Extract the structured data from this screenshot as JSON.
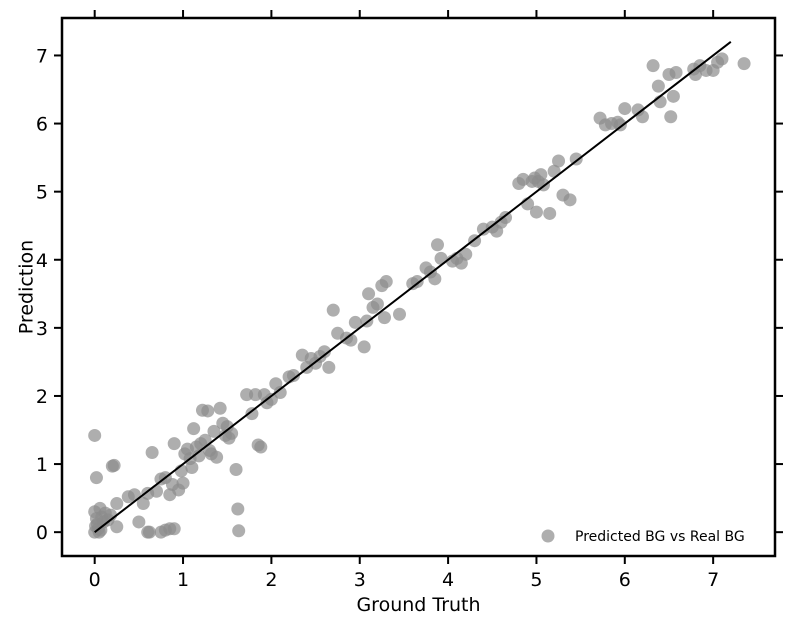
{
  "chart_data": {
    "type": "scatter",
    "xlabel": "Ground Truth",
    "ylabel": "Prediction",
    "xlim": [
      -0.37,
      7.7
    ],
    "ylim": [
      -0.35,
      7.55
    ],
    "xticks": [
      0,
      1,
      2,
      3,
      4,
      5,
      6,
      7
    ],
    "yticks": [
      0,
      1,
      2,
      3,
      4,
      5,
      6,
      7
    ],
    "legend": {
      "position": "lower-right"
    },
    "colors": {
      "points": "#8c8c8c",
      "line": "#000000"
    },
    "series": [
      {
        "name": "Predicted BG vs Real BG",
        "points": [
          [
            0.0,
            1.42
          ],
          [
            0.02,
            0.8
          ],
          [
            0.0,
            0.3
          ],
          [
            0.02,
            0.2
          ],
          [
            0.03,
            0.12
          ],
          [
            0.04,
            0.05
          ],
          [
            0.05,
            0.0
          ],
          [
            0.06,
            0.35
          ],
          [
            0.08,
            0.22
          ],
          [
            0.1,
            0.15
          ],
          [
            0.12,
            0.28
          ],
          [
            0.15,
            0.18
          ],
          [
            0.18,
            0.25
          ],
          [
            0.0,
            0.0
          ],
          [
            0.01,
            0.09
          ],
          [
            0.07,
            0.03
          ],
          [
            0.2,
            0.97
          ],
          [
            0.22,
            0.98
          ],
          [
            0.25,
            0.08
          ],
          [
            0.25,
            0.42
          ],
          [
            0.38,
            0.52
          ],
          [
            0.45,
            0.55
          ],
          [
            0.5,
            0.15
          ],
          [
            0.55,
            0.42
          ],
          [
            0.6,
            0.57
          ],
          [
            0.65,
            1.17
          ],
          [
            0.6,
            0.0
          ],
          [
            0.62,
            0.0
          ],
          [
            0.75,
            0.0
          ],
          [
            0.8,
            0.03
          ],
          [
            0.85,
            0.05
          ],
          [
            0.9,
            0.05
          ],
          [
            0.7,
            0.6
          ],
          [
            0.75,
            0.78
          ],
          [
            0.8,
            0.8
          ],
          [
            0.85,
            0.55
          ],
          [
            0.88,
            0.7
          ],
          [
            0.9,
            1.3
          ],
          [
            0.95,
            0.62
          ],
          [
            0.98,
            0.9
          ],
          [
            1.0,
            0.72
          ],
          [
            1.02,
            1.15
          ],
          [
            1.05,
            1.22
          ],
          [
            1.08,
            1.08
          ],
          [
            1.1,
            0.95
          ],
          [
            1.12,
            1.52
          ],
          [
            1.15,
            1.25
          ],
          [
            1.18,
            1.12
          ],
          [
            1.2,
            1.3
          ],
          [
            1.22,
            1.79
          ],
          [
            1.25,
            1.35
          ],
          [
            1.28,
            1.78
          ],
          [
            1.3,
            1.2
          ],
          [
            1.32,
            1.15
          ],
          [
            1.35,
            1.48
          ],
          [
            1.38,
            1.1
          ],
          [
            1.42,
            1.82
          ],
          [
            1.45,
            1.6
          ],
          [
            1.48,
            1.42
          ],
          [
            1.5,
            1.55
          ],
          [
            1.52,
            1.38
          ],
          [
            1.55,
            1.45
          ],
          [
            1.6,
            0.92
          ],
          [
            1.62,
            0.34
          ],
          [
            1.63,
            0.02
          ],
          [
            1.72,
            2.02
          ],
          [
            1.78,
            1.74
          ],
          [
            1.82,
            2.02
          ],
          [
            1.85,
            1.28
          ],
          [
            1.88,
            1.25
          ],
          [
            1.92,
            2.02
          ],
          [
            1.95,
            1.9
          ],
          [
            2.0,
            1.95
          ],
          [
            2.05,
            2.18
          ],
          [
            2.1,
            2.05
          ],
          [
            2.2,
            2.28
          ],
          [
            2.25,
            2.3
          ],
          [
            2.35,
            2.6
          ],
          [
            2.4,
            2.42
          ],
          [
            2.45,
            2.55
          ],
          [
            2.5,
            2.48
          ],
          [
            2.55,
            2.58
          ],
          [
            2.6,
            2.65
          ],
          [
            2.65,
            2.42
          ],
          [
            2.7,
            3.26
          ],
          [
            2.75,
            2.92
          ],
          [
            2.85,
            2.85
          ],
          [
            2.9,
            2.82
          ],
          [
            2.95,
            3.08
          ],
          [
            3.05,
            2.72
          ],
          [
            3.08,
            3.1
          ],
          [
            3.1,
            3.5
          ],
          [
            3.15,
            3.3
          ],
          [
            3.2,
            3.35
          ],
          [
            3.25,
            3.62
          ],
          [
            3.28,
            3.15
          ],
          [
            3.3,
            3.68
          ],
          [
            3.45,
            3.2
          ],
          [
            3.6,
            3.65
          ],
          [
            3.65,
            3.68
          ],
          [
            3.75,
            3.88
          ],
          [
            3.8,
            3.82
          ],
          [
            3.85,
            3.72
          ],
          [
            3.88,
            4.22
          ],
          [
            3.92,
            4.02
          ],
          [
            4.05,
            3.98
          ],
          [
            4.1,
            4.02
          ],
          [
            4.15,
            3.95
          ],
          [
            4.2,
            4.08
          ],
          [
            4.3,
            4.28
          ],
          [
            4.4,
            4.45
          ],
          [
            4.5,
            4.48
          ],
          [
            4.55,
            4.42
          ],
          [
            4.6,
            4.55
          ],
          [
            4.65,
            4.62
          ],
          [
            4.8,
            5.12
          ],
          [
            4.85,
            5.18
          ],
          [
            4.9,
            4.82
          ],
          [
            4.95,
            5.15
          ],
          [
            4.98,
            5.2
          ],
          [
            5.0,
            4.7
          ],
          [
            5.02,
            5.15
          ],
          [
            5.05,
            5.25
          ],
          [
            5.08,
            5.1
          ],
          [
            5.15,
            4.68
          ],
          [
            5.2,
            5.3
          ],
          [
            5.25,
            5.45
          ],
          [
            5.3,
            4.95
          ],
          [
            5.38,
            4.88
          ],
          [
            5.45,
            5.48
          ],
          [
            5.72,
            6.08
          ],
          [
            5.78,
            5.98
          ],
          [
            5.85,
            6.0
          ],
          [
            5.92,
            6.02
          ],
          [
            5.95,
            5.98
          ],
          [
            6.0,
            6.22
          ],
          [
            6.15,
            6.2
          ],
          [
            6.2,
            6.1
          ],
          [
            6.32,
            6.85
          ],
          [
            6.38,
            6.55
          ],
          [
            6.4,
            6.32
          ],
          [
            6.5,
            6.72
          ],
          [
            6.52,
            6.1
          ],
          [
            6.55,
            6.4
          ],
          [
            6.58,
            6.75
          ],
          [
            6.78,
            6.8
          ],
          [
            6.8,
            6.72
          ],
          [
            6.85,
            6.85
          ],
          [
            6.92,
            6.78
          ],
          [
            7.0,
            6.78
          ],
          [
            7.05,
            6.9
          ],
          [
            7.1,
            6.95
          ],
          [
            7.35,
            6.88
          ]
        ]
      }
    ],
    "fit_line": {
      "x": [
        0.0,
        7.2
      ],
      "y": [
        0.0,
        7.2
      ]
    }
  }
}
